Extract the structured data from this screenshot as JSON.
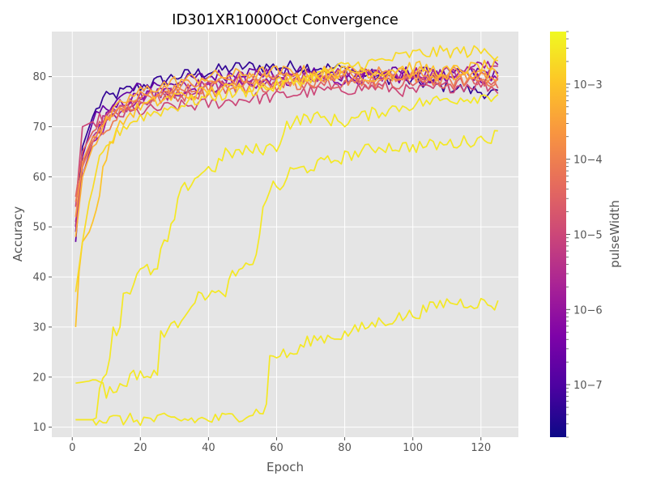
{
  "chart_data": {
    "type": "line",
    "title": "ID301XR1000Oct Convergence",
    "xlabel": "Epoch",
    "ylabel": "Accuracy",
    "xlim": [
      -6,
      131
    ],
    "ylim": [
      8,
      89
    ],
    "xticks": [
      0,
      20,
      40,
      60,
      80,
      100,
      120
    ],
    "yticks": [
      10,
      20,
      30,
      40,
      50,
      60,
      70,
      80
    ],
    "grid": true,
    "colorbar": {
      "label": "pulseWidth",
      "scale": "log",
      "colormap": "plasma",
      "range": [
        2e-08,
        0.005
      ],
      "ticks": [
        {
          "value": 1e-07,
          "label": "10−7"
        },
        {
          "value": 1e-06,
          "label": "10−6"
        },
        {
          "value": 1e-05,
          "label": "10−5"
        },
        {
          "value": 0.0001,
          "label": "10−4"
        },
        {
          "value": 0.001,
          "label": "10−3"
        }
      ]
    },
    "epochs": 125,
    "series": [
      {
        "pulseWidth": 0.003,
        "points": [
          [
            1,
            11.5
          ],
          [
            7,
            11.5
          ],
          [
            40,
            11.5
          ],
          [
            45,
            11.8
          ],
          [
            50,
            12.5
          ],
          [
            55,
            13.2
          ],
          [
            57,
            14
          ],
          [
            58,
            24
          ],
          [
            60,
            24.5
          ],
          [
            65,
            24.5
          ],
          [
            70,
            27.5
          ],
          [
            80,
            28.5
          ],
          [
            90,
            31
          ],
          [
            100,
            32.5
          ],
          [
            110,
            35
          ],
          [
            120,
            34.8
          ],
          [
            125,
            34.3
          ]
        ]
      },
      {
        "pulseWidth": 0.003,
        "points": [
          [
            1,
            18.8
          ],
          [
            5,
            19.2
          ],
          [
            8,
            20
          ],
          [
            10,
            16.8
          ],
          [
            14,
            18
          ],
          [
            17,
            20
          ],
          [
            20,
            21
          ],
          [
            22,
            20
          ],
          [
            25,
            20.5
          ],
          [
            26,
            29
          ],
          [
            30,
            30
          ],
          [
            35,
            35
          ],
          [
            40,
            37
          ],
          [
            44,
            36
          ],
          [
            47,
            40
          ],
          [
            52,
            42
          ],
          [
            54,
            45
          ],
          [
            56,
            53
          ],
          [
            58,
            58
          ],
          [
            61,
            57.5
          ],
          [
            64,
            61
          ],
          [
            70,
            62
          ],
          [
            80,
            64
          ],
          [
            90,
            66
          ],
          [
            100,
            66
          ],
          [
            110,
            66.5
          ],
          [
            120,
            67.5
          ],
          [
            125,
            68.3
          ]
        ]
      },
      {
        "pulseWidth": 0.003,
        "points": [
          [
            1,
            11.5
          ],
          [
            6,
            11.5
          ],
          [
            7,
            11.8
          ],
          [
            8,
            19
          ],
          [
            10,
            21
          ],
          [
            12,
            29
          ],
          [
            14,
            30
          ],
          [
            15,
            37
          ],
          [
            17,
            37.5
          ],
          [
            19,
            40
          ],
          [
            21,
            41.5
          ],
          [
            25,
            41
          ],
          [
            26,
            45.5
          ],
          [
            28,
            47
          ],
          [
            30,
            52
          ],
          [
            32,
            57
          ],
          [
            35,
            59
          ],
          [
            38,
            61
          ],
          [
            42,
            62
          ],
          [
            45,
            64.5
          ],
          [
            50,
            65
          ],
          [
            55,
            65.5
          ],
          [
            60,
            66
          ],
          [
            63,
            70.5
          ],
          [
            70,
            72
          ],
          [
            80,
            71
          ],
          [
            90,
            73
          ],
          [
            100,
            74.5
          ],
          [
            110,
            75.5
          ],
          [
            120,
            76
          ],
          [
            125,
            76.5
          ]
        ]
      },
      {
        "pulseWidth": 0.002,
        "points": [
          [
            1,
            37
          ],
          [
            3,
            47
          ],
          [
            5,
            55
          ],
          [
            8,
            63
          ],
          [
            11,
            67
          ],
          [
            15,
            70
          ],
          [
            20,
            72
          ],
          [
            30,
            74
          ],
          [
            40,
            76
          ],
          [
            50,
            77
          ],
          [
            60,
            78
          ],
          [
            70,
            80
          ],
          [
            80,
            82
          ],
          [
            90,
            83
          ],
          [
            100,
            84.5
          ],
          [
            110,
            85
          ],
          [
            120,
            85
          ],
          [
            125,
            84.5
          ]
        ]
      },
      {
        "pulseWidth": 0.001,
        "points": [
          [
            1,
            30
          ],
          [
            2,
            41
          ],
          [
            3,
            47
          ],
          [
            5,
            49
          ],
          [
            7,
            53
          ],
          [
            9,
            62
          ],
          [
            12,
            68
          ],
          [
            16,
            72
          ],
          [
            20,
            74
          ],
          [
            30,
            76
          ],
          [
            40,
            77
          ],
          [
            50,
            78
          ],
          [
            60,
            79
          ],
          [
            70,
            80
          ],
          [
            80,
            81
          ],
          [
            90,
            81
          ],
          [
            100,
            82
          ],
          [
            110,
            81
          ],
          [
            120,
            82
          ],
          [
            125,
            82
          ]
        ]
      },
      {
        "pulseWidth": 0.0005,
        "points": [
          [
            1,
            48
          ],
          [
            3,
            60
          ],
          [
            6,
            66
          ],
          [
            10,
            71
          ],
          [
            15,
            75
          ],
          [
            20,
            77
          ],
          [
            30,
            79
          ],
          [
            40,
            80
          ],
          [
            50,
            80.5
          ],
          [
            60,
            81
          ],
          [
            70,
            81
          ],
          [
            80,
            81
          ],
          [
            90,
            80
          ],
          [
            100,
            81
          ],
          [
            110,
            80
          ],
          [
            120,
            81
          ],
          [
            125,
            80.5
          ]
        ]
      },
      {
        "pulseWidth": 0.0002,
        "points": [
          [
            1,
            52
          ],
          [
            3,
            63
          ],
          [
            6,
            68
          ],
          [
            10,
            71
          ],
          [
            15,
            74
          ],
          [
            20,
            76
          ],
          [
            30,
            78
          ],
          [
            40,
            79
          ],
          [
            50,
            79.5
          ],
          [
            60,
            80
          ],
          [
            70,
            80
          ],
          [
            80,
            80.5
          ],
          [
            90,
            81
          ],
          [
            100,
            80
          ],
          [
            110,
            81
          ],
          [
            120,
            80
          ],
          [
            125,
            80
          ]
        ]
      },
      {
        "pulseWidth": 8e-05,
        "points": [
          [
            1,
            55
          ],
          [
            3,
            62
          ],
          [
            6,
            67
          ],
          [
            10,
            70
          ],
          [
            15,
            73
          ],
          [
            20,
            75
          ],
          [
            30,
            77
          ],
          [
            40,
            78
          ],
          [
            50,
            79
          ],
          [
            60,
            79
          ],
          [
            70,
            78.5
          ],
          [
            80,
            79.5
          ],
          [
            90,
            79
          ],
          [
            100,
            80
          ],
          [
            110,
            79
          ],
          [
            120,
            79.5
          ],
          [
            125,
            79
          ]
        ]
      },
      {
        "pulseWidth": 3e-05,
        "points": [
          [
            1,
            56
          ],
          [
            3,
            65
          ],
          [
            6,
            69
          ],
          [
            10,
            72
          ],
          [
            15,
            74
          ],
          [
            20,
            75
          ],
          [
            30,
            76
          ],
          [
            40,
            77
          ],
          [
            50,
            78
          ],
          [
            60,
            78
          ],
          [
            70,
            79
          ],
          [
            80,
            79
          ],
          [
            90,
            78.5
          ],
          [
            100,
            79
          ],
          [
            110,
            78.5
          ],
          [
            120,
            79
          ],
          [
            125,
            78.5
          ]
        ]
      },
      {
        "pulseWidth": 1e-05,
        "points": [
          [
            1,
            54
          ],
          [
            3,
            70
          ],
          [
            6,
            71
          ],
          [
            10,
            72
          ],
          [
            15,
            72.5
          ],
          [
            20,
            73
          ],
          [
            30,
            74
          ],
          [
            40,
            74.5
          ],
          [
            50,
            75.5
          ],
          [
            60,
            76
          ],
          [
            70,
            77
          ],
          [
            80,
            77.5
          ],
          [
            90,
            78
          ],
          [
            100,
            77
          ],
          [
            110,
            78
          ],
          [
            120,
            78.5
          ],
          [
            125,
            77.5
          ]
        ]
      },
      {
        "pulseWidth": 4e-06,
        "points": [
          [
            1,
            50
          ],
          [
            3,
            62
          ],
          [
            6,
            68
          ],
          [
            10,
            72
          ],
          [
            15,
            74
          ],
          [
            20,
            75
          ],
          [
            30,
            77
          ],
          [
            40,
            78
          ],
          [
            50,
            79
          ],
          [
            60,
            79.5
          ],
          [
            70,
            80
          ],
          [
            80,
            80
          ],
          [
            90,
            80.5
          ],
          [
            100,
            80
          ],
          [
            110,
            81
          ],
          [
            120,
            80.5
          ],
          [
            125,
            81
          ]
        ]
      },
      {
        "pulseWidth": 1.5e-06,
        "points": [
          [
            1,
            51
          ],
          [
            3,
            60
          ],
          [
            6,
            67
          ],
          [
            10,
            71
          ],
          [
            15,
            74
          ],
          [
            20,
            76
          ],
          [
            30,
            78
          ],
          [
            40,
            79
          ],
          [
            50,
            80
          ],
          [
            60,
            80.5
          ],
          [
            70,
            80
          ],
          [
            80,
            81
          ],
          [
            90,
            80
          ],
          [
            100,
            81
          ],
          [
            110,
            80
          ],
          [
            120,
            82
          ],
          [
            125,
            83
          ]
        ]
      },
      {
        "pulseWidth": 6e-07,
        "points": [
          [
            1,
            49
          ],
          [
            3,
            62
          ],
          [
            6,
            68
          ],
          [
            10,
            72
          ],
          [
            15,
            75
          ],
          [
            20,
            76
          ],
          [
            30,
            77
          ],
          [
            40,
            78
          ],
          [
            50,
            78.5
          ],
          [
            60,
            79
          ],
          [
            70,
            79
          ],
          [
            80,
            79.5
          ],
          [
            90,
            80
          ],
          [
            100,
            79.5
          ],
          [
            110,
            80
          ],
          [
            120,
            80
          ],
          [
            125,
            79
          ]
        ]
      },
      {
        "pulseWidth": 2e-07,
        "points": [
          [
            1,
            47
          ],
          [
            3,
            64
          ],
          [
            6,
            71
          ],
          [
            10,
            74
          ],
          [
            15,
            76
          ],
          [
            20,
            78
          ],
          [
            30,
            79
          ],
          [
            40,
            80
          ],
          [
            50,
            81
          ],
          [
            60,
            80.5
          ],
          [
            70,
            81
          ],
          [
            80,
            80
          ],
          [
            90,
            80.5
          ],
          [
            100,
            81
          ],
          [
            110,
            80
          ],
          [
            120,
            81
          ],
          [
            125,
            80
          ]
        ]
      },
      {
        "pulseWidth": 5e-08,
        "points": [
          [
            1,
            50
          ],
          [
            3,
            66
          ],
          [
            6,
            72
          ],
          [
            9,
            75.5
          ],
          [
            15,
            77
          ],
          [
            20,
            78
          ],
          [
            30,
            80
          ],
          [
            40,
            81
          ],
          [
            50,
            82
          ],
          [
            60,
            82
          ],
          [
            70,
            82
          ],
          [
            80,
            81.5
          ],
          [
            90,
            80
          ],
          [
            100,
            79
          ],
          [
            110,
            78
          ],
          [
            120,
            77
          ],
          [
            125,
            76.5
          ]
        ]
      }
    ]
  }
}
